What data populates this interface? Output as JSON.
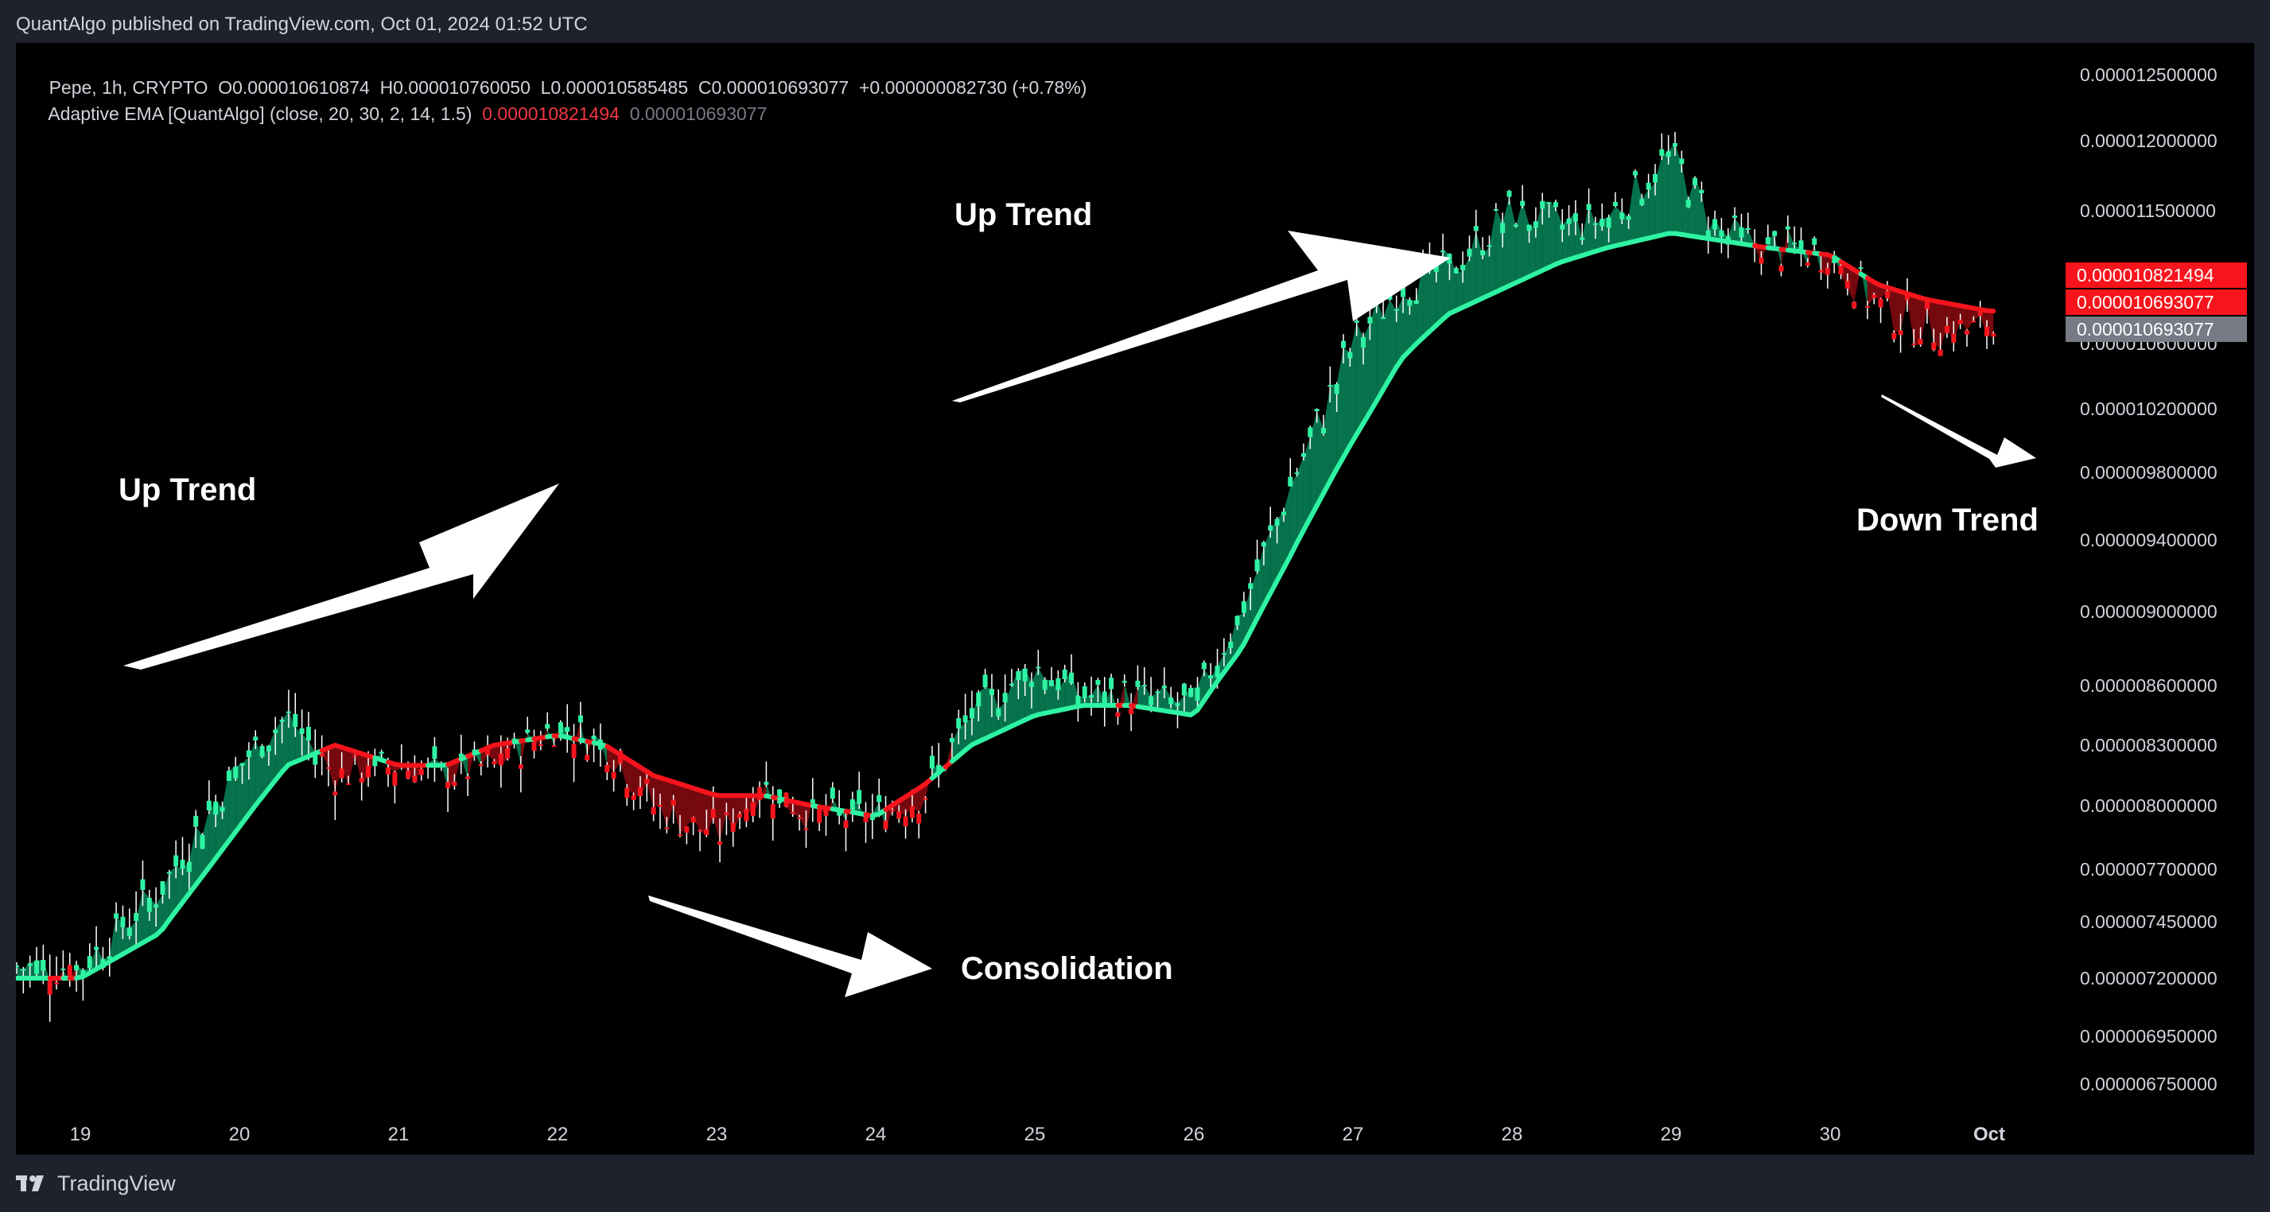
{
  "header": {
    "publisher_line": "QuantAlgo published on TradingView.com, Oct 01, 2024 01:52 UTC"
  },
  "legend": {
    "symbol": "Pepe, 1h, CRYPTO",
    "ohlc": "O0.000010610874  H0.000010760050  L0.000010585485  C0.000010693077  +0.000000082730 (+0.78%)",
    "indicator": "Adaptive EMA [QuantAlgo] (close, 20, 30, 2, 14, 1.5)",
    "indicator_value_1": "0.000010821494",
    "indicator_value_2": "0.000010693077"
  },
  "price_axis": {
    "labels": [
      "0.000012500000",
      "0.000012000000",
      "0.000011500000",
      "0.000010600000",
      "0.000010200000",
      "0.000009800000",
      "0.000009400000",
      "0.000009000000",
      "0.000008600000",
      "0.000008300000",
      "0.000008000000",
      "0.000007700000",
      "0.000007450000",
      "0.000007200000",
      "0.000006950000",
      "0.000006750000"
    ],
    "tags": [
      {
        "text": "0.000010821494",
        "color": "#f7141c"
      },
      {
        "text": "0.000010693077",
        "color": "#f7141c"
      },
      {
        "text": "0.000010693077",
        "color": "#787b86"
      }
    ]
  },
  "time_axis": {
    "labels": [
      "19",
      "20",
      "21",
      "22",
      "23",
      "24",
      "25",
      "26",
      "27",
      "28",
      "29",
      "30",
      "Oct"
    ]
  },
  "annotations": {
    "up_trend_1": "Up Trend",
    "up_trend_2": "Up Trend",
    "consolidation": "Consolidation",
    "down_trend": "Down Trend"
  },
  "footer": {
    "brand": "TradingView"
  },
  "colors": {
    "bull": "#2ef3a3",
    "bull_fill": "#07875a",
    "bear": "#f7141c",
    "bear_fill": "#8a0a10",
    "background": "#000000",
    "frame": "#1e222d"
  },
  "chart_data": {
    "type": "line",
    "title": "Pepe, 1h, CRYPTO",
    "x": [
      "19",
      "19.5",
      "20",
      "20.3",
      "20.6",
      "21",
      "21.3",
      "21.6",
      "22",
      "22.3",
      "22.6",
      "23",
      "23.3",
      "23.6",
      "24",
      "24.3",
      "24.6",
      "25",
      "25.3",
      "25.6",
      "26",
      "26.3",
      "26.6",
      "27",
      "27.3",
      "27.6",
      "28",
      "28.3",
      "28.6",
      "29",
      "29.3",
      "29.6",
      "30",
      "30.3",
      "30.6",
      "Oct"
    ],
    "series": [
      {
        "values": [
          7.25,
          7.6,
          8.2,
          8.45,
          8.15,
          8.2,
          8.15,
          8.2,
          8.4,
          8.3,
          8.0,
          7.85,
          8.1,
          7.95,
          7.95,
          8.05,
          8.45,
          8.7,
          8.55,
          8.55,
          8.5,
          9.0,
          9.7,
          10.6,
          11.0,
          11.1,
          11.5,
          11.4,
          11.45,
          11.9,
          11.35,
          11.25,
          11.2,
          10.85,
          10.7,
          10.69
        ]
      },
      {
        "values": [
          7.2,
          7.4,
          7.9,
          8.2,
          8.3,
          8.2,
          8.2,
          8.3,
          8.35,
          8.3,
          8.15,
          8.05,
          8.05,
          8.0,
          7.95,
          8.1,
          8.3,
          8.45,
          8.5,
          8.5,
          8.45,
          8.8,
          9.3,
          10.0,
          10.5,
          10.8,
          11.0,
          11.15,
          11.25,
          11.35,
          11.3,
          11.25,
          11.2,
          11.0,
          10.9,
          10.82
        ]
      }
    ],
    "ylabel": "",
    "ylim": [
      6.6,
      12.7
    ],
    "y_unit_scale": "1e-6",
    "grid": false
  }
}
